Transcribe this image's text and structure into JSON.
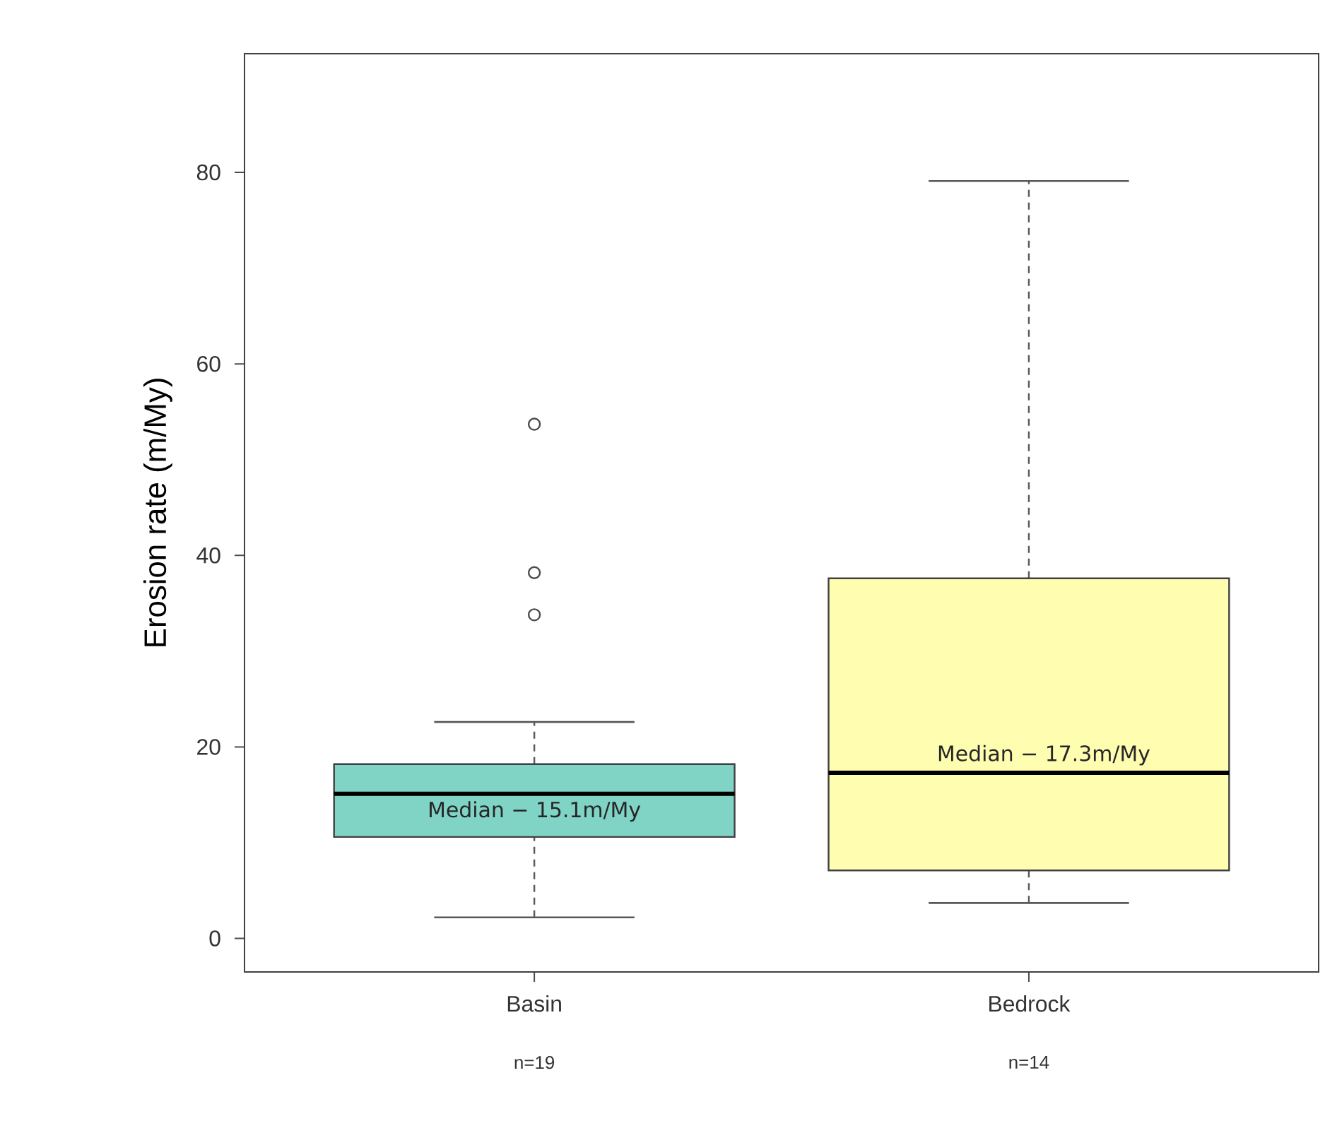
{
  "chart_data": {
    "type": "box",
    "ylabel": "Erosion rate (m/My)",
    "categories": [
      "Basin",
      "Bedrock"
    ],
    "colors": [
      "#80d4c6",
      "#fffdb0"
    ],
    "boxes": [
      {
        "low": 2.2,
        "q1": 10.6,
        "median": 15.1,
        "q3": 18.2,
        "high": 22.6,
        "outliers": [
          53.7,
          38.2,
          33.8
        ]
      },
      {
        "low": 3.7,
        "q1": 7.1,
        "median": 17.3,
        "q3": 37.6,
        "high": 79.1
      }
    ],
    "ylim": [
      -3.5,
      92.4
    ],
    "yticks": [
      0,
      20,
      40,
      60,
      80
    ],
    "annotations": [
      {
        "text": "Median − 15.1m/My",
        "x": "Basin",
        "y": 15.1
      },
      {
        "text": "Median − 17.3m/My",
        "x": "Bedrock",
        "y": 17.3
      },
      "n=19",
      "n=14"
    ]
  }
}
